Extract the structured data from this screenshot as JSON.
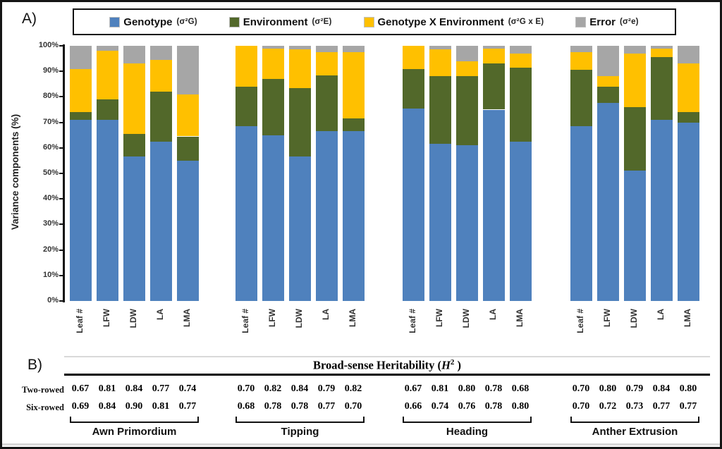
{
  "figure": {
    "panel_a_label": "A)",
    "panel_b_label": "B)"
  },
  "legend": {
    "items": [
      {
        "name": "Genotype",
        "symbol": "(σ²G)",
        "color": "#4F81BD"
      },
      {
        "name": "Environment",
        "symbol": "(σ²E)",
        "color": "#52682A"
      },
      {
        "name": "Genotype X Environment",
        "symbol": "(σ²G x E)",
        "color": "#FFC000"
      },
      {
        "name": "Error",
        "symbol": "(σ²e)",
        "color": "#A6A6A6"
      }
    ]
  },
  "chart_data": {
    "type": "bar",
    "stacked": true,
    "title": "",
    "ylabel": "Variance components (%)",
    "ylim": [
      0,
      100
    ],
    "ytick_labels": [
      "0%",
      "10%",
      "20%",
      "30%",
      "40%",
      "50%",
      "60%",
      "70%",
      "80%",
      "90%",
      "100%"
    ],
    "categories": [
      "Leaf #",
      "LFW",
      "LDW",
      "LA",
      "LMA"
    ],
    "series_names": [
      "Genotype",
      "Environment",
      "Genotype X Environment",
      "Error"
    ],
    "legend_position": "top",
    "grid": false,
    "groups": [
      {
        "name": "Awn Primordium",
        "series": [
          {
            "name": "Genotype",
            "values": [
              71,
              71,
              56.5,
              62.5,
              55
            ]
          },
          {
            "name": "Environment",
            "values": [
              3,
              8,
              9,
              19.5,
              9.5
            ]
          },
          {
            "name": "Genotype X Environment",
            "values": [
              17,
              19,
              27.5,
              12.5,
              16.5
            ]
          },
          {
            "name": "Error",
            "values": [
              9,
              2,
              7,
              5.5,
              19
            ]
          }
        ]
      },
      {
        "name": "Tipping",
        "series": [
          {
            "name": "Genotype",
            "values": [
              68.5,
              65,
              56.5,
              66.5,
              66.5
            ]
          },
          {
            "name": "Environment",
            "values": [
              15.5,
              22,
              27,
              22,
              5
            ]
          },
          {
            "name": "Genotype X Environment",
            "values": [
              16,
              12,
              15,
              9,
              26
            ]
          },
          {
            "name": "Error",
            "values": [
              0,
              1,
              1.5,
              2.5,
              2.5
            ]
          }
        ]
      },
      {
        "name": "Heading",
        "series": [
          {
            "name": "Genotype",
            "values": [
              75.5,
              61.5,
              61,
              75,
              62.5
            ]
          },
          {
            "name": "Environment",
            "values": [
              15.5,
              26.5,
              27,
              18,
              29
            ]
          },
          {
            "name": "Genotype X Environment",
            "values": [
              9,
              10.5,
              6,
              6,
              5.5
            ]
          },
          {
            "name": "Error",
            "values": [
              0,
              1.5,
              6,
              1,
              3
            ]
          }
        ]
      },
      {
        "name": "Anther Extrusion",
        "series": [
          {
            "name": "Genotype",
            "values": [
              68.5,
              77.5,
              51,
              71,
              70
            ]
          },
          {
            "name": "Environment",
            "values": [
              22,
              6.5,
              25,
              24.5,
              4
            ]
          },
          {
            "name": "Genotype X Environment",
            "values": [
              7,
              4,
              21,
              3.5,
              19
            ]
          },
          {
            "name": "Error",
            "values": [
              2.5,
              12,
              3,
              1,
              7
            ]
          }
        ]
      }
    ]
  },
  "heritability": {
    "title_prefix": "Broad-sense Heritability (",
    "title_symbol": "H",
    "title_sup": "2",
    "title_suffix": " )",
    "stages": [
      "Awn Primordium",
      "Tipping",
      "Heading",
      "Anther Extrusion"
    ],
    "rows": [
      {
        "label": "Two-rowed",
        "values": [
          [
            "0.67",
            "0.81",
            "0.84",
            "0.77",
            "0.74"
          ],
          [
            "0.70",
            "0.82",
            "0.84",
            "0.79",
            "0.82"
          ],
          [
            "0.67",
            "0.81",
            "0.80",
            "0.78",
            "0.68"
          ],
          [
            "0.70",
            "0.80",
            "0.79",
            "0.84",
            "0.80"
          ]
        ]
      },
      {
        "label": "Six-rowed",
        "values": [
          [
            "0.69",
            "0.84",
            "0.90",
            "0.81",
            "0.77"
          ],
          [
            "0.68",
            "0.78",
            "0.78",
            "0.77",
            "0.70"
          ],
          [
            "0.66",
            "0.74",
            "0.76",
            "0.78",
            "0.80"
          ],
          [
            "0.70",
            "0.72",
            "0.73",
            "0.77",
            "0.77"
          ]
        ]
      }
    ]
  }
}
